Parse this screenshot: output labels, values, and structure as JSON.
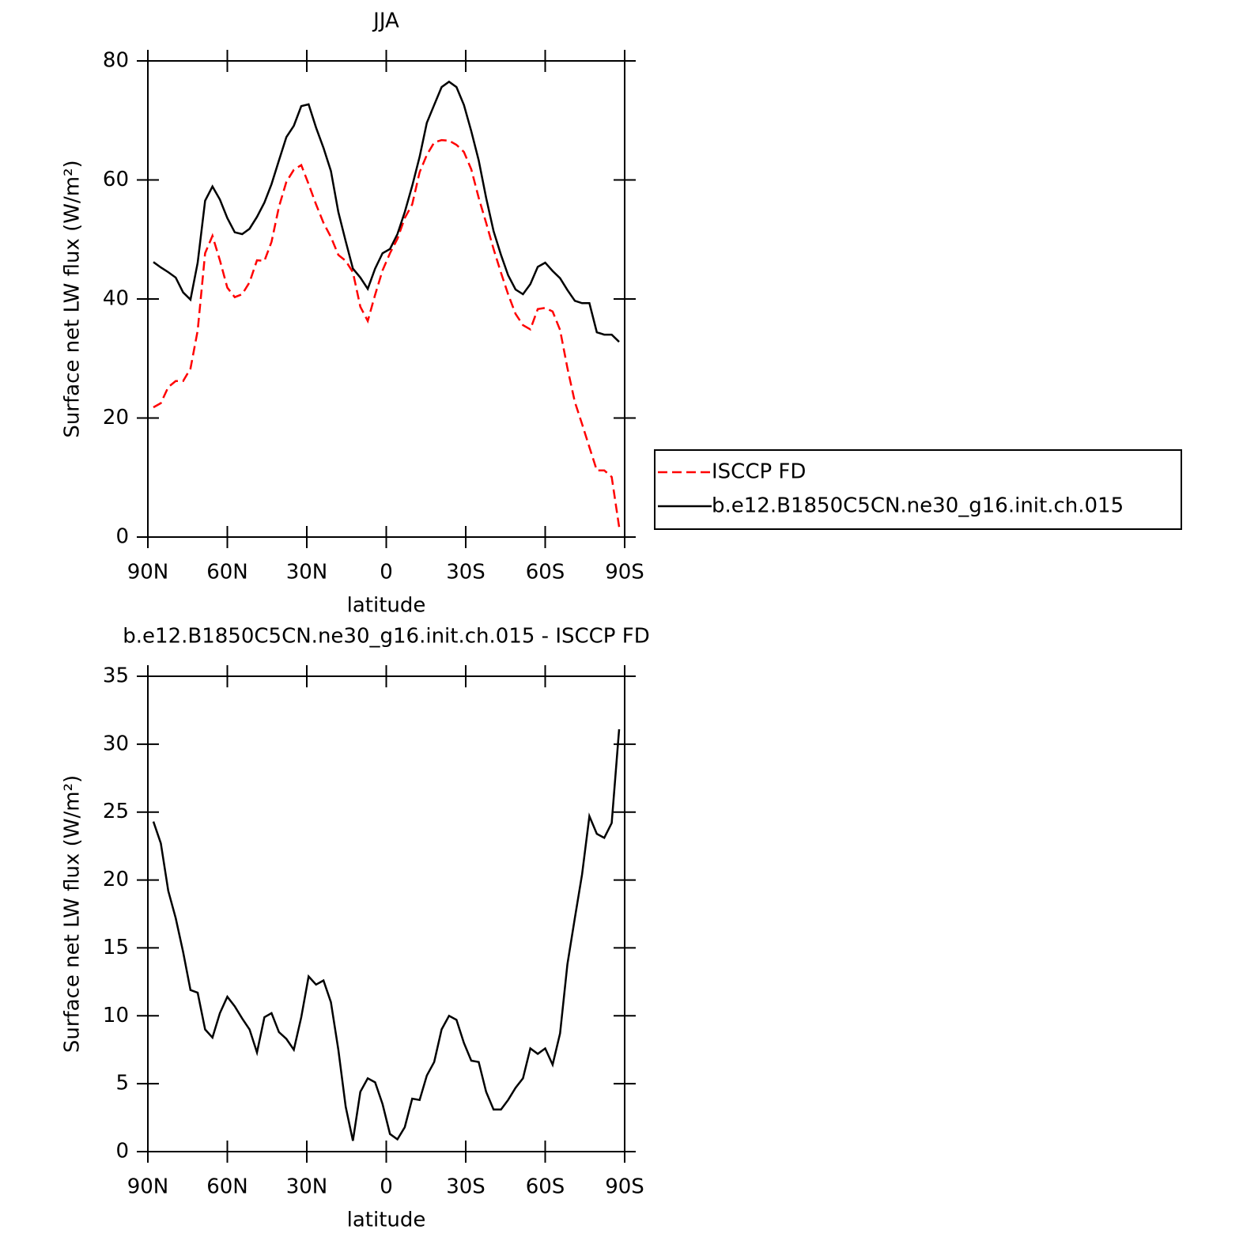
{
  "chart_data": [
    {
      "type": "line",
      "title": "JJA",
      "xlabel": "latitude",
      "ylabel": "Surface net LW flux (W/m²)",
      "x": [
        87.9,
        85.1,
        82.3,
        79.5,
        76.7,
        73.9,
        71.2,
        68.4,
        65.6,
        62.8,
        60.0,
        57.2,
        54.4,
        51.6,
        48.8,
        46.0,
        43.3,
        40.5,
        37.7,
        34.9,
        32.1,
        29.3,
        26.5,
        23.7,
        20.9,
        18.1,
        15.3,
        12.6,
        9.8,
        7.0,
        4.2,
        1.4,
        -1.4,
        -4.2,
        -7.0,
        -9.8,
        -12.6,
        -15.3,
        -18.1,
        -20.9,
        -23.7,
        -26.5,
        -29.3,
        -32.1,
        -34.9,
        -37.7,
        -40.5,
        -43.3,
        -46.0,
        -48.8,
        -51.6,
        -54.4,
        -57.2,
        -60.0,
        -62.8,
        -65.6,
        -68.4,
        -71.2,
        -73.9,
        -76.7,
        -79.5,
        -82.3,
        -85.1,
        -87.9
      ],
      "series": [
        {
          "name": "ISCCP FD",
          "color": "#ff0000",
          "style": "dashed",
          "values": [
            21.8,
            22.5,
            25.2,
            26.2,
            26.2,
            28.3,
            34.7,
            47.7,
            50.6,
            46.5,
            41.9,
            40.3,
            40.8,
            42.8,
            46.5,
            46.4,
            49.6,
            55.5,
            59.7,
            61.7,
            62.5,
            59.3,
            55.9,
            52.8,
            50.4,
            47.4,
            46.4,
            44.5,
            38.7,
            36.3,
            40.7,
            44.8,
            47.7,
            50.1,
            53.6,
            55.9,
            61.3,
            64.2,
            66.3,
            66.7,
            66.6,
            65.9,
            64.7,
            61.8,
            57.0,
            52.8,
            48.4,
            44.4,
            40.8,
            37.5,
            35.6,
            34.9,
            38.3,
            38.5,
            37.9,
            34.8,
            28.4,
            22.7,
            19.0,
            15.1,
            11.2,
            11.2,
            10.1,
            1.7
          ]
        },
        {
          "name": "b.e12.B1850C5CN.ne30_g16.init.ch.015",
          "color": "#000000",
          "style": "solid",
          "values": [
            46.2,
            45.3,
            44.5,
            43.6,
            41.1,
            39.9,
            46.1,
            56.5,
            58.9,
            56.7,
            53.6,
            51.2,
            50.9,
            51.8,
            53.8,
            56.2,
            59.3,
            63.3,
            67.2,
            69.1,
            72.4,
            72.7,
            68.8,
            65.4,
            61.5,
            54.6,
            49.7,
            45.1,
            43.6,
            41.7,
            45.1,
            47.7,
            48.4,
            50.9,
            54.6,
            59.0,
            63.9,
            69.6,
            72.6,
            75.6,
            76.5,
            75.6,
            72.6,
            68.2,
            63.3,
            57.0,
            51.4,
            47.4,
            44.0,
            41.6,
            40.8,
            42.5,
            45.4,
            46.1,
            44.7,
            43.5,
            41.5,
            39.7,
            39.3,
            39.3,
            34.4,
            34.0,
            34.0,
            32.8
          ]
        }
      ],
      "xlim": [
        90,
        -90
      ],
      "xticks": [
        {
          "value": 90,
          "label": "90N"
        },
        {
          "value": 60,
          "label": "60N"
        },
        {
          "value": 30,
          "label": "30N"
        },
        0,
        {
          "value": -30,
          "label": "30S"
        },
        {
          "value": -60,
          "label": "60S"
        },
        {
          "value": -90,
          "label": "90S"
        }
      ],
      "ylim": [
        0,
        80
      ],
      "yticks": [
        0,
        20,
        40,
        60,
        80
      ],
      "legend": "outside-right"
    },
    {
      "type": "line",
      "title": "b.e12.B1850C5CN.ne30_g16.init.ch.015 - ISCCP FD",
      "xlabel": "latitude",
      "ylabel": "Surface net LW flux (W/m²)",
      "x": [
        87.9,
        85.1,
        82.3,
        79.5,
        76.7,
        73.9,
        71.2,
        68.4,
        65.6,
        62.8,
        60.0,
        57.2,
        54.4,
        51.6,
        48.8,
        46.0,
        43.3,
        40.5,
        37.7,
        34.9,
        32.1,
        29.3,
        26.5,
        23.7,
        20.9,
        18.1,
        15.3,
        12.6,
        9.8,
        7.0,
        4.2,
        1.4,
        -1.4,
        -4.2,
        -7.0,
        -9.8,
        -12.6,
        -15.3,
        -18.1,
        -20.9,
        -23.7,
        -26.5,
        -29.3,
        -32.1,
        -34.9,
        -37.7,
        -40.5,
        -43.3,
        -46.0,
        -48.8,
        -51.6,
        -54.4,
        -57.2,
        -60.0,
        -62.8,
        -65.6,
        -68.4,
        -71.2,
        -73.9,
        -76.7,
        -79.5,
        -82.3,
        -85.1,
        -87.9
      ],
      "color": "#000000",
      "values": [
        24.3,
        22.7,
        19.2,
        17.2,
        14.7,
        11.9,
        11.7,
        9.0,
        8.4,
        10.2,
        11.4,
        10.7,
        9.8,
        9.0,
        7.3,
        9.9,
        10.2,
        8.8,
        8.3,
        7.5,
        9.9,
        12.9,
        12.3,
        12.6,
        11.0,
        7.5,
        3.3,
        0.8,
        4.4,
        5.4,
        5.1,
        3.5,
        1.3,
        0.9,
        1.8,
        3.9,
        3.8,
        5.6,
        6.6,
        9.0,
        10.0,
        9.7,
        8.0,
        6.7,
        6.6,
        4.4,
        3.1,
        3.1,
        3.8,
        4.7,
        5.4,
        7.6,
        7.2,
        7.6,
        6.4,
        8.7,
        13.8,
        17.2,
        20.4,
        24.7,
        23.4,
        23.1,
        24.2,
        31.1
      ],
      "xlim": [
        90,
        -90
      ],
      "xticks": [
        {
          "value": 90,
          "label": "90N"
        },
        {
          "value": 60,
          "label": "60N"
        },
        {
          "value": 30,
          "label": "30N"
        },
        0,
        {
          "value": -30,
          "label": "30S"
        },
        {
          "value": -60,
          "label": "60S"
        },
        {
          "value": -90,
          "label": "90S"
        }
      ],
      "ylim": [
        0,
        35
      ],
      "yticks": [
        0,
        5,
        10,
        15,
        20,
        25,
        30,
        35
      ]
    }
  ]
}
